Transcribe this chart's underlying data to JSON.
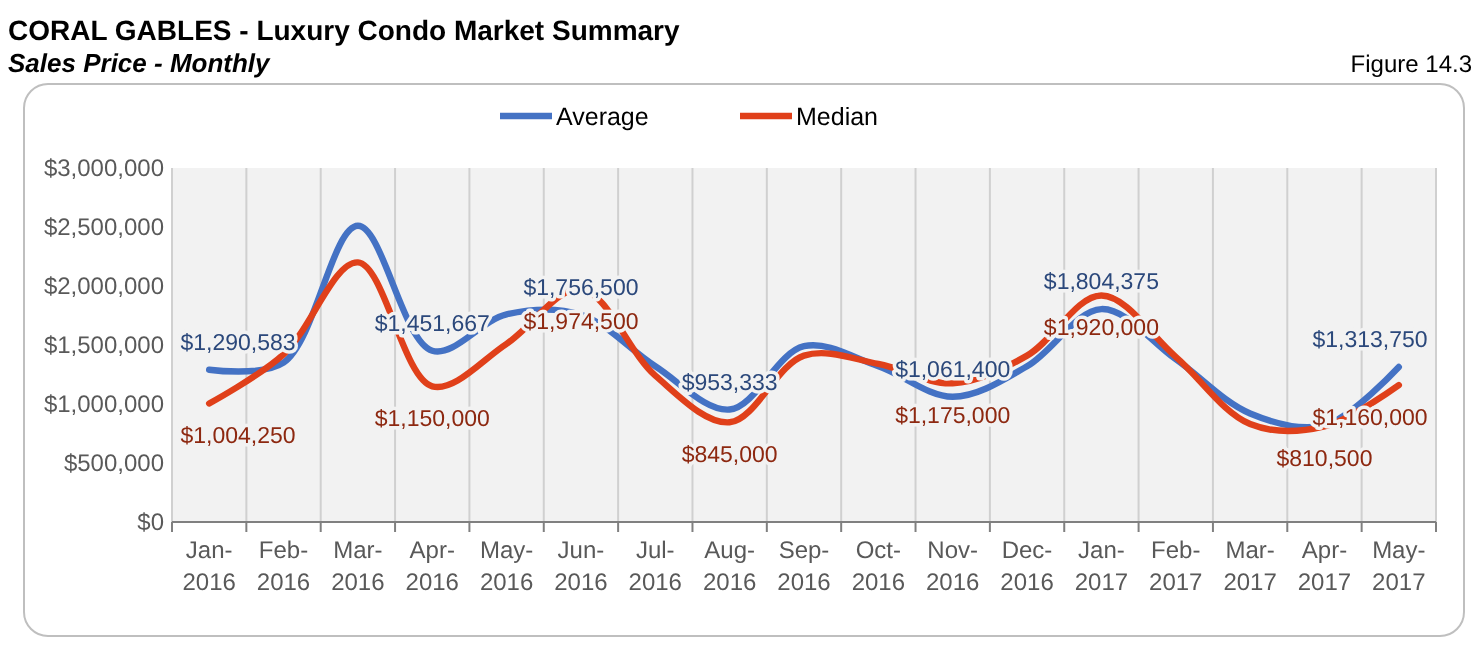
{
  "chart_data": {
    "type": "line",
    "title": "CORAL GABLES - Luxury Condo Market Summary",
    "subtitle": "Sales Price - Monthly",
    "annotations": [
      "Figure 14.3"
    ],
    "categories": [
      "Jan-2016",
      "Feb-2016",
      "Mar-2016",
      "Apr-2016",
      "May-2016",
      "Jun-2016",
      "Jul-2016",
      "Aug-2016",
      "Sep-2016",
      "Oct-2016",
      "Nov-2016",
      "Dec-2016",
      "Jan-2017",
      "Feb-2017",
      "Mar-2017",
      "Apr-2017",
      "May-2017"
    ],
    "series": [
      {
        "name": "Average",
        "color": "#4472c4",
        "values": [
          1290583,
          1350000,
          2510000,
          1451667,
          1760000,
          1756500,
          1320000,
          953333,
          1490000,
          1320000,
          1061400,
          1320000,
          1804375,
          1380000,
          920000,
          820000,
          1313750
        ],
        "value_labels": [
          "$1,290,583",
          null,
          null,
          "$1,451,667",
          null,
          "$1,756,500",
          null,
          "$953,333",
          null,
          null,
          "$1,061,400",
          null,
          "$1,804,375",
          null,
          null,
          null,
          "$1,313,750"
        ]
      },
      {
        "name": "Median",
        "color": "#e0401a",
        "values": [
          1004250,
          1420000,
          2200000,
          1150000,
          1510000,
          1974500,
          1240000,
          845000,
          1410000,
          1340000,
          1175000,
          1410000,
          1920000,
          1400000,
          830000,
          810500,
          1160000
        ],
        "value_labels": [
          "$1,004,250",
          null,
          null,
          "$1,150,000",
          null,
          "$1,974,500",
          null,
          "$845,000",
          null,
          null,
          "$1,175,000",
          null,
          "$1,920,000",
          null,
          null,
          "$810,500",
          "$1,160,000"
        ]
      }
    ],
    "ylim": [
      0,
      3000000
    ],
    "yticks": [
      {
        "value": 0,
        "label": "$0"
      },
      {
        "value": 500000,
        "label": "$500,000"
      },
      {
        "value": 1000000,
        "label": "$1,000,000"
      },
      {
        "value": 1500000,
        "label": "$1,500,000"
      },
      {
        "value": 2000000,
        "label": "$2,000,000"
      },
      {
        "value": 2500000,
        "label": "$2,500,000"
      },
      {
        "value": 3000000,
        "label": "$3,000,000"
      }
    ],
    "grid": "x",
    "legend": "top",
    "marker": "none",
    "line_style": "solid"
  }
}
